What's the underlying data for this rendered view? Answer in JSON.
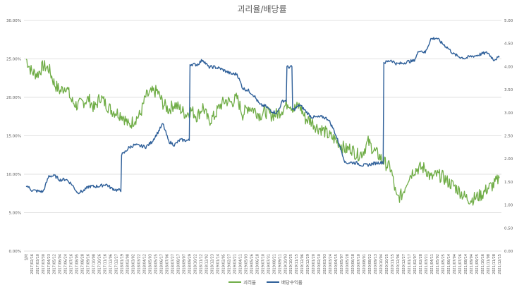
{
  "chart_data": {
    "type": "line",
    "title": "괴리율/배당률",
    "x_start_label": "일자",
    "x_tick_labels": [
      "2017/02/16",
      "2017/03/10",
      "2017/03/30",
      "2017/04/23",
      "2017/05/12",
      "2017/06/04",
      "2017/06/24",
      "2017/07/16",
      "2017/08/05",
      "2017/08/28",
      "2017/09/16",
      "2017/10/08",
      "2017/10/26",
      "2017/11/16",
      "2017/12/06",
      "2017/12/27",
      "2018/01/19",
      "2018/02/08",
      "2018/03/02",
      "2018/03/22",
      "2018/04/12",
      "2018/05/03",
      "2018/05/25",
      "2018/06/17",
      "2018/07/06",
      "2018/07/27",
      "2018/08/17",
      "2018/09/07",
      "2018/09/29",
      "2018/10/22",
      "2018/11/12",
      "2018/12/02",
      "2018/12/23",
      "2019/01/14",
      "2019/02/05",
      "2019/02/27",
      "2019/03/21",
      "2019/04/11",
      "2019/05/03",
      "2019/05/26",
      "2019/06/18",
      "2019/07/10",
      "2019/07/31",
      "2019/08/21",
      "2019/09/11",
      "2019/10/03",
      "2019/10/25",
      "2019/11/15",
      "2019/12/06",
      "2019/12/29",
      "2020/01/20",
      "2020/02/10",
      "2020/03/03",
      "2020/03/24",
      "2020/04/15",
      "2020/05/07",
      "2020/05/28",
      "2020/06/18",
      "2020/07/10",
      "2020/08/01",
      "2020/08/22",
      "2020/09/13",
      "2020/10/04",
      "2020/10/25",
      "2020/11/15",
      "2020/12/06",
      "2020/12/27",
      "2021/01/17",
      "2021/02/07",
      "2021/02/28",
      "2021/03/21",
      "2021/04/11",
      "2021/05/02",
      "2021/05/25",
      "2021/06/14",
      "2021/07/04",
      "2021/07/26",
      "2021/08/14",
      "2021/09/04",
      "2021/09/25",
      "2021/10/16",
      "2021/11/08",
      "2021/11/28",
      "2021/12/15"
    ],
    "y_left": {
      "ticks": [
        "0.00%",
        "5.00%",
        "10.00%",
        "15.00%",
        "20.00%",
        "25.00%",
        "30.00%"
      ],
      "range": [
        0,
        30
      ]
    },
    "y_right": {
      "ticks": [
        "0.00",
        "0.50",
        "1.00",
        "1.50",
        "2.00",
        "2.50",
        "3.00",
        "3.50",
        "4.00",
        "4.50",
        "5.00"
      ],
      "range": [
        0,
        5
      ]
    },
    "grid": true,
    "legend_position": "bottom",
    "series": [
      {
        "name": "괴리율",
        "axis": "left",
        "color": "#70ad47",
        "values": [
          25.0,
          23.3,
          23.0,
          24.1,
          23.7,
          21.7,
          20.8,
          21.5,
          19.5,
          18.9,
          19.4,
          19.8,
          18.5,
          20.1,
          19.1,
          18.3,
          18.0,
          17.6,
          16.3,
          17.1,
          17.7,
          20.1,
          20.6,
          20.8,
          19.2,
          18.4,
          19.1,
          18.5,
          17.8,
          18.3,
          17.5,
          18.8,
          16.9,
          17.5,
          18.9,
          19.6,
          19.3,
          19.9,
          17.8,
          18.8,
          18.4,
          17.7,
          18.1,
          17.7,
          17.8,
          18.5,
          19.4,
          18.5,
          18.9,
          17.2,
          16.9,
          16.1,
          15.8,
          15.1,
          14.6,
          14.0,
          13.2,
          13.4,
          12.5,
          12.8,
          14.2,
          13.1,
          12.3,
          11.4,
          10.7,
          6.8,
          7.4,
          9.5,
          10.5,
          10.8,
          10.8,
          9.5,
          9.9,
          9.7,
          9.0,
          8.5,
          7.8,
          7.0,
          6.7,
          7.0,
          7.4,
          8.2,
          8.6,
          9.5
        ]
      },
      {
        "name": "배당수익률",
        "axis": "right",
        "color": "#2e5f99",
        "values": [
          1.43,
          1.32,
          1.3,
          1.29,
          1.63,
          1.63,
          1.54,
          1.56,
          1.45,
          1.27,
          1.3,
          1.4,
          1.4,
          1.41,
          1.45,
          1.36,
          1.32,
          2.1,
          2.24,
          2.3,
          2.28,
          2.26,
          2.36,
          2.55,
          2.76,
          2.38,
          2.3,
          2.41,
          2.4,
          4.05,
          4.04,
          4.15,
          3.99,
          3.99,
          3.96,
          3.9,
          3.84,
          3.84,
          3.53,
          3.48,
          3.37,
          3.17,
          3.14,
          3.04,
          2.99,
          3.26,
          3.99,
          3.07,
          3.17,
          3.04,
          2.91,
          2.9,
          2.91,
          2.86,
          2.62,
          2.29,
          1.91,
          1.92,
          1.91,
          1.86,
          1.87,
          1.9,
          1.92,
          4.09,
          4.14,
          4.06,
          4.07,
          4.11,
          4.12,
          4.36,
          4.3,
          4.6,
          4.62,
          4.5,
          4.4,
          4.27,
          4.21,
          4.18,
          4.22,
          4.24,
          4.28,
          4.3,
          4.15,
          4.2
        ]
      }
    ]
  }
}
